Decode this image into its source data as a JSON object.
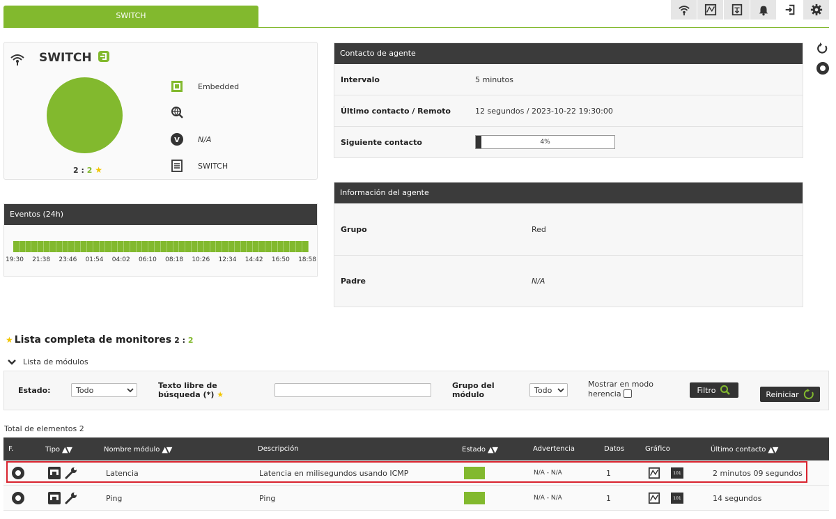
{
  "tab": {
    "label": "SWITCH"
  },
  "toolbar": {
    "icons": [
      "wifi-icon",
      "chart-icon",
      "module-icon",
      "bell-icon",
      "login-icon",
      "gear-icon"
    ]
  },
  "agent": {
    "name": "SWITCH",
    "count_a": "2",
    "count_sep": ":",
    "count_b": "2",
    "os": "Embedded",
    "version": "N/A",
    "alias": "SWITCH",
    "status_color": "#82b92e"
  },
  "events": {
    "title": "Eventos (24h)",
    "ticks": [
      "19:30",
      "21:38",
      "23:46",
      "01:54",
      "04:02",
      "06:10",
      "08:18",
      "10:26",
      "12:34",
      "14:42",
      "16:50",
      "18:58"
    ]
  },
  "contact": {
    "title": "Contacto de agente",
    "interval_label": "Intervalo",
    "interval_value": "5 minutos",
    "last_label": "Último contacto / Remoto",
    "last_value": "12 segundos / 2023-10-22 19:30:00",
    "next_label": "Siguiente contacto",
    "next_progress_text": "4%",
    "next_progress": 0.04
  },
  "info": {
    "title": "Información del agente",
    "group_label": "Grupo",
    "group_value": "Red",
    "parent_label": "Padre",
    "parent_value": "N/A"
  },
  "monitors": {
    "title": "Lista completa de monitores",
    "count_a": "2",
    "count_sep": ":",
    "count_b": "2",
    "modules_toggle": "Lista de módulos"
  },
  "filter": {
    "estado_label": "Estado:",
    "estado_value": "Todo",
    "search_label": "Texto libre de búsqueda (*)",
    "search_value": "",
    "group_label": "Grupo del módulo",
    "group_value": "Todo",
    "inherit_label": "Mostrar en modo herencia",
    "filter_button": "Filtro",
    "reset_button": "Reiniciar"
  },
  "total_label": "Total de elementos 2",
  "table": {
    "headers": {
      "f": "F.",
      "tipo": "Tipo",
      "nombre": "Nombre módulo",
      "descripcion": "Descripción",
      "estado": "Estado",
      "advertencia": "Advertencia",
      "datos": "Datos",
      "grafico": "Gráfico",
      "ultimo": "Último contacto"
    },
    "rows": [
      {
        "name": "Latencia",
        "description": "Latencia en milisegundos usando ICMP",
        "warning": "N/A - N/A",
        "data": "1",
        "last_contact": "2 minutos 09 segundos"
      },
      {
        "name": "Ping",
        "description": "Ping",
        "warning": "N/A - N/A",
        "data": "1",
        "last_contact": "14 segundos"
      }
    ]
  },
  "colors": {
    "accent": "#82b92e",
    "dark": "#3b3b3b",
    "highlight": "#d9232e"
  }
}
